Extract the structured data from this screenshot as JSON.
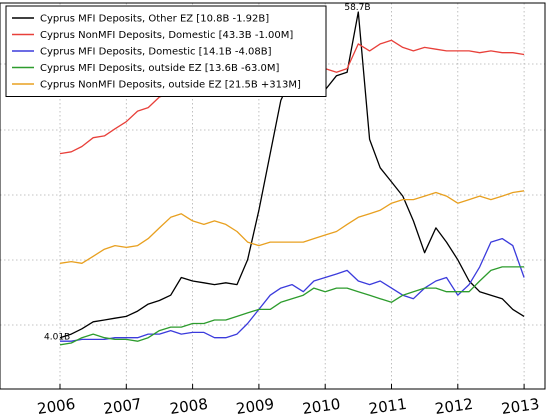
{
  "chart_data": {
    "type": "line",
    "title": "",
    "xlabel": "",
    "ylabel": "",
    "xlim": [
      2005.85,
      2013.35
    ],
    "ylim": [
      0,
      100
    ],
    "grid": true,
    "legend_position": "top-left",
    "x_ticks": [
      "2006",
      "2007",
      "2008",
      "2009",
      "2010",
      "2011",
      "2012",
      "2013"
    ],
    "annotations": [
      {
        "text": "58.7B",
        "x": 2010.5,
        "y": 100
      },
      {
        "text": "4.01B",
        "x": 2006.0,
        "y": 8
      }
    ],
    "series": [
      {
        "name": "Cyprus MFI Deposits, Other EZ [10.8B -1.92B]",
        "color": "#000000",
        "points": [
          [
            2006.0,
            8
          ],
          [
            2006.17,
            9
          ],
          [
            2006.33,
            10.5
          ],
          [
            2006.5,
            12.5
          ],
          [
            2006.67,
            13
          ],
          [
            2006.83,
            13.5
          ],
          [
            2007.0,
            14
          ],
          [
            2007.17,
            15.5
          ],
          [
            2007.33,
            17.5
          ],
          [
            2007.5,
            18.5
          ],
          [
            2007.67,
            20
          ],
          [
            2007.83,
            25
          ],
          [
            2008.0,
            24
          ],
          [
            2008.17,
            23.5
          ],
          [
            2008.33,
            23
          ],
          [
            2008.5,
            23.5
          ],
          [
            2008.67,
            23
          ],
          [
            2008.83,
            30
          ],
          [
            2009.0,
            44
          ],
          [
            2009.17,
            60
          ],
          [
            2009.33,
            75
          ],
          [
            2009.5,
            82
          ],
          [
            2009.67,
            84
          ],
          [
            2009.83,
            86
          ],
          [
            2010.0,
            78
          ],
          [
            2010.17,
            82
          ],
          [
            2010.33,
            83
          ],
          [
            2010.5,
            100
          ],
          [
            2010.67,
            64
          ],
          [
            2010.83,
            56
          ],
          [
            2011.0,
            52
          ],
          [
            2011.17,
            48
          ],
          [
            2011.33,
            41
          ],
          [
            2011.5,
            32
          ],
          [
            2011.67,
            39
          ],
          [
            2011.83,
            35
          ],
          [
            2012.0,
            30
          ],
          [
            2012.17,
            24
          ],
          [
            2012.33,
            21
          ],
          [
            2012.5,
            20
          ],
          [
            2012.67,
            19
          ],
          [
            2012.83,
            16
          ],
          [
            2013.0,
            14
          ]
        ]
      },
      {
        "name": "Cyprus NonMFI Deposits, Domestic [43.3B -1.00M]",
        "color": "#e8403a",
        "points": [
          [
            2006.0,
            60
          ],
          [
            2006.17,
            60.5
          ],
          [
            2006.33,
            62
          ],
          [
            2006.5,
            64.5
          ],
          [
            2006.67,
            65
          ],
          [
            2006.83,
            67
          ],
          [
            2007.0,
            69
          ],
          [
            2007.17,
            72
          ],
          [
            2007.33,
            73
          ],
          [
            2007.5,
            76
          ],
          [
            2007.67,
            77
          ],
          [
            2007.83,
            79
          ],
          [
            2008.0,
            78
          ],
          [
            2008.17,
            81
          ],
          [
            2008.33,
            82
          ],
          [
            2008.5,
            85
          ],
          [
            2008.67,
            87
          ],
          [
            2008.83,
            86
          ],
          [
            2009.0,
            87
          ],
          [
            2009.17,
            85
          ],
          [
            2009.33,
            86
          ],
          [
            2009.5,
            86
          ],
          [
            2009.67,
            85.5
          ],
          [
            2009.83,
            84.5
          ],
          [
            2010.0,
            84
          ],
          [
            2010.17,
            83
          ],
          [
            2010.33,
            84
          ],
          [
            2010.5,
            91
          ],
          [
            2010.67,
            89
          ],
          [
            2010.83,
            91
          ],
          [
            2011.0,
            92
          ],
          [
            2011.17,
            90
          ],
          [
            2011.33,
            89
          ],
          [
            2011.5,
            90
          ],
          [
            2011.67,
            89.5
          ],
          [
            2011.83,
            89
          ],
          [
            2012.0,
            89
          ],
          [
            2012.17,
            89
          ],
          [
            2012.33,
            88.5
          ],
          [
            2012.5,
            89
          ],
          [
            2012.67,
            88.5
          ],
          [
            2012.83,
            88.5
          ],
          [
            2013.0,
            88
          ]
        ]
      },
      {
        "name": "Cyprus MFI Deposits, Domestic [14.1B -4.08B]",
        "color": "#3b3bdc",
        "points": [
          [
            2006.0,
            7
          ],
          [
            2006.17,
            7
          ],
          [
            2006.33,
            7.5
          ],
          [
            2006.5,
            7.5
          ],
          [
            2006.67,
            7.5
          ],
          [
            2006.83,
            8
          ],
          [
            2007.0,
            8
          ],
          [
            2007.17,
            8
          ],
          [
            2007.33,
            9
          ],
          [
            2007.5,
            9
          ],
          [
            2007.67,
            10
          ],
          [
            2007.83,
            9
          ],
          [
            2008.0,
            9.5
          ],
          [
            2008.17,
            9.5
          ],
          [
            2008.33,
            8
          ],
          [
            2008.5,
            8
          ],
          [
            2008.67,
            9
          ],
          [
            2008.83,
            12
          ],
          [
            2009.0,
            16
          ],
          [
            2009.17,
            20
          ],
          [
            2009.33,
            22
          ],
          [
            2009.5,
            23
          ],
          [
            2009.67,
            21
          ],
          [
            2009.83,
            24
          ],
          [
            2010.0,
            25
          ],
          [
            2010.17,
            26
          ],
          [
            2010.33,
            27
          ],
          [
            2010.5,
            24
          ],
          [
            2010.67,
            23
          ],
          [
            2010.83,
            24
          ],
          [
            2011.0,
            22
          ],
          [
            2011.17,
            20
          ],
          [
            2011.33,
            19
          ],
          [
            2011.5,
            22
          ],
          [
            2011.67,
            24
          ],
          [
            2011.83,
            25
          ],
          [
            2012.0,
            20
          ],
          [
            2012.17,
            23
          ],
          [
            2012.33,
            28
          ],
          [
            2012.5,
            35
          ],
          [
            2012.67,
            36
          ],
          [
            2012.83,
            34
          ],
          [
            2013.0,
            25
          ]
        ]
      },
      {
        "name": "Cyprus MFI Deposits, outside EZ [13.6B -63.0M]",
        "color": "#2d9c2d",
        "points": [
          [
            2006.0,
            6
          ],
          [
            2006.17,
            6.5
          ],
          [
            2006.33,
            8
          ],
          [
            2006.5,
            9
          ],
          [
            2006.67,
            8
          ],
          [
            2006.83,
            7.5
          ],
          [
            2007.0,
            7.5
          ],
          [
            2007.17,
            7
          ],
          [
            2007.33,
            8
          ],
          [
            2007.5,
            10
          ],
          [
            2007.67,
            11
          ],
          [
            2007.83,
            11
          ],
          [
            2008.0,
            12
          ],
          [
            2008.17,
            12
          ],
          [
            2008.33,
            13
          ],
          [
            2008.5,
            13
          ],
          [
            2008.67,
            14
          ],
          [
            2008.83,
            15
          ],
          [
            2009.0,
            16
          ],
          [
            2009.17,
            16
          ],
          [
            2009.33,
            18
          ],
          [
            2009.5,
            19
          ],
          [
            2009.67,
            20
          ],
          [
            2009.83,
            22
          ],
          [
            2010.0,
            21
          ],
          [
            2010.17,
            22
          ],
          [
            2010.33,
            22
          ],
          [
            2010.5,
            21
          ],
          [
            2010.67,
            20
          ],
          [
            2010.83,
            19
          ],
          [
            2011.0,
            18
          ],
          [
            2011.17,
            20
          ],
          [
            2011.33,
            21
          ],
          [
            2011.5,
            22
          ],
          [
            2011.67,
            22
          ],
          [
            2011.83,
            21
          ],
          [
            2012.0,
            21
          ],
          [
            2012.17,
            21
          ],
          [
            2012.33,
            24
          ],
          [
            2012.5,
            27
          ],
          [
            2012.67,
            28
          ],
          [
            2012.83,
            28
          ],
          [
            2013.0,
            28
          ]
        ]
      },
      {
        "name": "Cyprus NonMFI Deposits, outside EZ [21.5B +313M]",
        "color": "#e8a020",
        "points": [
          [
            2006.0,
            29
          ],
          [
            2006.17,
            29.5
          ],
          [
            2006.33,
            29
          ],
          [
            2006.5,
            31
          ],
          [
            2006.67,
            33
          ],
          [
            2006.83,
            34
          ],
          [
            2007.0,
            33.5
          ],
          [
            2007.17,
            34
          ],
          [
            2007.33,
            36
          ],
          [
            2007.5,
            39
          ],
          [
            2007.67,
            42
          ],
          [
            2007.83,
            43
          ],
          [
            2008.0,
            41
          ],
          [
            2008.17,
            40
          ],
          [
            2008.33,
            41
          ],
          [
            2008.5,
            40
          ],
          [
            2008.67,
            38
          ],
          [
            2008.83,
            35
          ],
          [
            2009.0,
            34
          ],
          [
            2009.17,
            35
          ],
          [
            2009.33,
            35
          ],
          [
            2009.5,
            35
          ],
          [
            2009.67,
            35
          ],
          [
            2009.83,
            36
          ],
          [
            2010.0,
            37
          ],
          [
            2010.17,
            38
          ],
          [
            2010.33,
            40
          ],
          [
            2010.5,
            42
          ],
          [
            2010.67,
            43
          ],
          [
            2010.83,
            44
          ],
          [
            2011.0,
            46
          ],
          [
            2011.17,
            47
          ],
          [
            2011.33,
            47
          ],
          [
            2011.5,
            48
          ],
          [
            2011.67,
            49
          ],
          [
            2011.83,
            48
          ],
          [
            2012.0,
            46
          ],
          [
            2012.17,
            47
          ],
          [
            2012.33,
            48
          ],
          [
            2012.5,
            47
          ],
          [
            2012.67,
            48
          ],
          [
            2012.83,
            49
          ],
          [
            2013.0,
            49.5
          ]
        ]
      }
    ]
  }
}
